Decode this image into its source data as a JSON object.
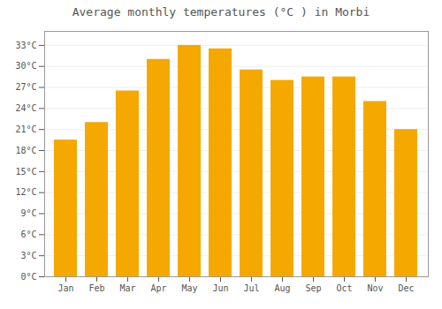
{
  "chart_data": {
    "type": "bar",
    "title": "Average monthly temperatures (°C ) in Morbi",
    "categories": [
      "Jan",
      "Feb",
      "Mar",
      "Apr",
      "May",
      "Jun",
      "Jul",
      "Aug",
      "Sep",
      "Oct",
      "Nov",
      "Dec"
    ],
    "values": [
      19.5,
      22.0,
      26.5,
      31.0,
      33.0,
      32.5,
      29.5,
      28.0,
      28.5,
      28.5,
      25.0,
      21.0
    ],
    "color": "#F5A800",
    "ylim": [
      0,
      35
    ],
    "yticks": [
      {
        "value": 0,
        "label": "0°C"
      },
      {
        "value": 3,
        "label": "3°C"
      },
      {
        "value": 6,
        "label": "6°C"
      },
      {
        "value": 9,
        "label": "9°C"
      },
      {
        "value": 12,
        "label": "12°C"
      },
      {
        "value": 15,
        "label": "15°C"
      },
      {
        "value": 18,
        "label": "18°C"
      },
      {
        "value": 21,
        "label": "21°C"
      },
      {
        "value": 24,
        "label": "24°C"
      },
      {
        "value": 27,
        "label": "27°C"
      },
      {
        "value": 30,
        "label": "30°C"
      },
      {
        "value": 33,
        "label": "33°C"
      }
    ],
    "grid": true
  }
}
